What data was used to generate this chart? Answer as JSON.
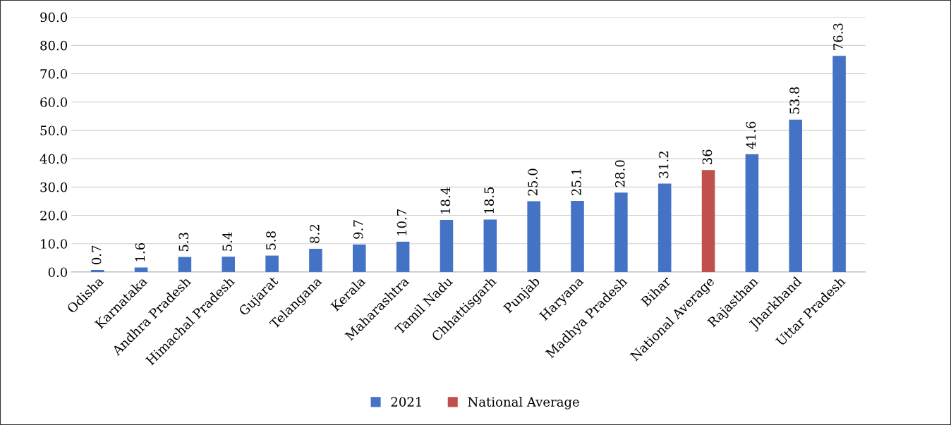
{
  "chart_data": {
    "type": "bar",
    "categories": [
      "Odisha",
      "Karnataka",
      "Andhra Pradesh",
      "Himachal Pradesh",
      "Gujarat",
      "Telangana",
      "Kerala",
      "Maharashtra",
      "Tamil Nadu",
      "Chhattisgarh",
      "Punjab",
      "Haryana",
      "Madhya Pradesh",
      "Bihar",
      "National Average",
      "Rajasthan",
      "Jharkhand",
      "Uttar Pradesh"
    ],
    "series": [
      {
        "name": "2021",
        "color": "#4472c4",
        "values": [
          0.7,
          1.6,
          5.3,
          5.4,
          5.8,
          8.2,
          9.7,
          10.7,
          18.4,
          18.5,
          25.0,
          25.1,
          28.0,
          31.2,
          null,
          41.6,
          53.8,
          76.3
        ],
        "value_labels": [
          "0.7",
          "1.6",
          "5.3",
          "5.4",
          "5.8",
          "8.2",
          "9.7",
          "10.7",
          "18.4",
          "18.5",
          "25.0",
          "25.1",
          "28.0",
          "31.2",
          null,
          "41.6",
          "53.8",
          "76.3"
        ]
      },
      {
        "name": "National Average",
        "color": "#c0504d",
        "values": [
          null,
          null,
          null,
          null,
          null,
          null,
          null,
          null,
          null,
          null,
          null,
          null,
          null,
          null,
          36,
          null,
          null,
          null
        ],
        "value_labels": [
          null,
          null,
          null,
          null,
          null,
          null,
          null,
          null,
          null,
          null,
          null,
          null,
          null,
          null,
          "36",
          null,
          null,
          null
        ]
      }
    ],
    "ylim": [
      0,
      90
    ],
    "yticks": [
      {
        "value": 0,
        "label": "0.0"
      },
      {
        "value": 10,
        "label": "10.0"
      },
      {
        "value": 20,
        "label": "20.0"
      },
      {
        "value": 30,
        "label": "30.0"
      },
      {
        "value": 40,
        "label": "40.0"
      },
      {
        "value": 50,
        "label": "50.0"
      },
      {
        "value": 60,
        "label": "60.0"
      },
      {
        "value": 70,
        "label": "70.0"
      },
      {
        "value": 80,
        "label": "80.0"
      },
      {
        "value": 90,
        "label": "90.0"
      }
    ],
    "grid": "y",
    "legend": "bottom"
  }
}
